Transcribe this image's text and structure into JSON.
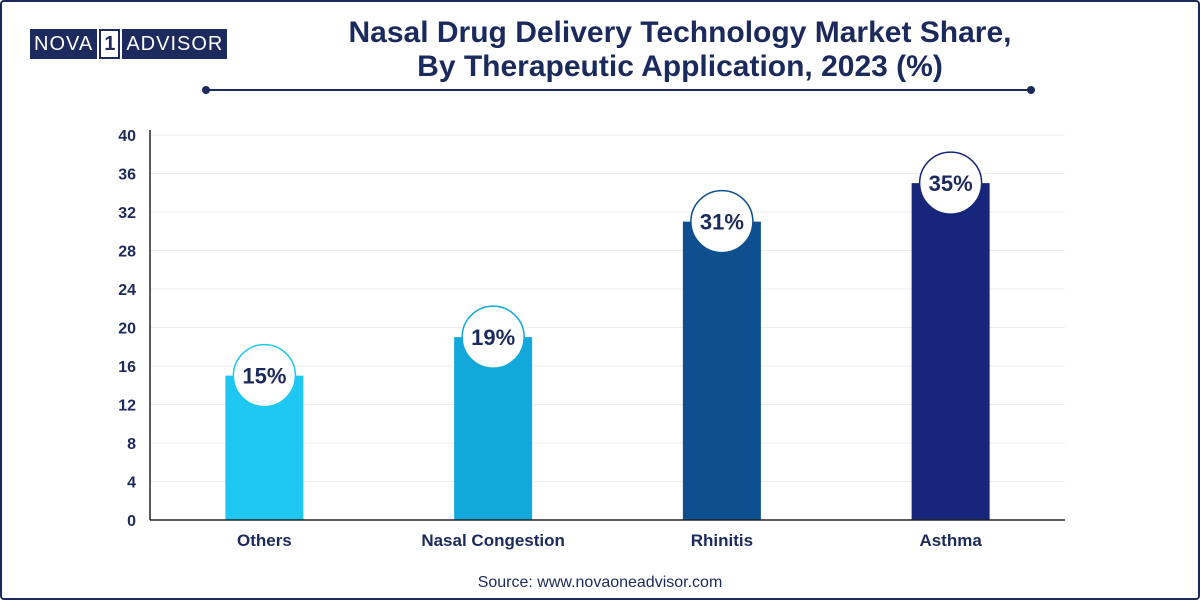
{
  "logo": {
    "part1": "NOVA",
    "part2": "1",
    "part3": "ADVISOR"
  },
  "title_line1": "Nasal Drug Delivery Technology Market Share,",
  "title_line2": "By Therapeutic Application, 2023 (%)",
  "source": "Source: www.novaoneadvisor.com",
  "chart_data": {
    "type": "bar",
    "title": "Nasal Drug Delivery Technology Market Share, By Therapeutic Application, 2023 (%)",
    "categories": [
      "Others",
      "Nasal Congestion",
      "Rhinitis",
      "Asthma"
    ],
    "values": [
      15,
      19,
      31,
      35
    ],
    "data_labels": [
      "15%",
      "19%",
      "31%",
      "35%"
    ],
    "colors": [
      "#1ec8f2",
      "#12a8dc",
      "#0d4f8f",
      "#17267a"
    ],
    "ylim": [
      0,
      40
    ],
    "yticks": [
      0,
      4,
      8,
      12,
      16,
      20,
      24,
      28,
      32,
      36,
      40
    ],
    "xlabel": "",
    "ylabel": "",
    "grid": true,
    "legend": false
  }
}
